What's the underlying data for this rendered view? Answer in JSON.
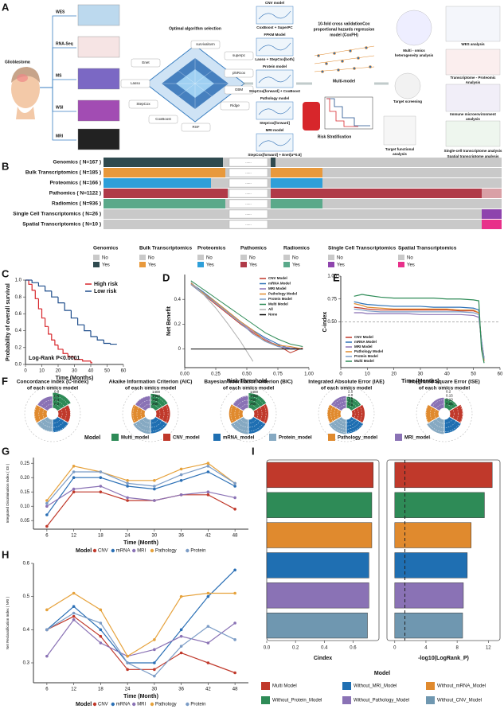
{
  "panel_a": {
    "label": "A",
    "input_title": "Glioblastoma",
    "modalities": [
      "WES",
      "RNA-Seq",
      "MS",
      "WSI",
      "MRI"
    ],
    "algo_title": "Optimal algorithm selection",
    "algorithms": [
      "survivalsvm",
      "superpc",
      "plsRcox",
      "GBM",
      "Ridge",
      "RSF",
      "CoxBoost",
      "StepCox",
      "Lasso",
      "Enet"
    ],
    "models": [
      {
        "name": "CNV model",
        "combo": "CoxBoost + SuperPC"
      },
      {
        "name": "FPKM Model",
        "combo": "Lasso + StepCox[both]"
      },
      {
        "name": "Protein model",
        "combo": "StepCox[forward] + CoxBoost"
      },
      {
        "name": "Pathology model",
        "combo": "StepCox[forward]"
      },
      {
        "name": "MRI model",
        "combo": "StepCox[forward] + Enet[α=0.8]"
      }
    ],
    "cv_title": [
      "10-fold cross validationCox",
      "proportional hazards regression",
      "model (CoxPH)"
    ],
    "multi_model": "Multi-model",
    "risk": "Risk Stratification",
    "analyses": [
      [
        "Multi - omics",
        "heterogeneity analysis"
      ],
      [
        "WES analysis"
      ],
      [
        "Transcriptome - Proteomic",
        "Analysis"
      ],
      [
        "Target screening"
      ],
      [
        "Immune microenvironment",
        "analysis"
      ],
      [
        "Target functional",
        "analysis"
      ],
      [
        "Single-cell transcriptome analysis"
      ],
      [
        "Spatial transcriptome analysis"
      ]
    ]
  },
  "panel_b": {
    "label": "B",
    "ellipsis": "......",
    "rows": [
      "Genomics ( N=167 )",
      "Bulk Transcriptomics ( N=185 )",
      "Proteomics ( N=166 )",
      "Pathomics ( N=1122 )",
      "Radiomics ( N=936 )",
      "Single Cell Transcriptomics ( N=26 )",
      "Spatial Transcriptomics ( N=10 )"
    ],
    "legend": [
      {
        "title": "Genomics",
        "items": [
          "No",
          "Yes"
        ],
        "colors": [
          "#c9c9c9",
          "#2f4a4f"
        ]
      },
      {
        "title": "Bulk Transcriptomics",
        "items": [
          "No",
          "Yes"
        ],
        "colors": [
          "#c9c9c9",
          "#e8993c"
        ]
      },
      {
        "title": "Proteomics",
        "items": [
          "No",
          "Yes"
        ],
        "colors": [
          "#c9c9c9",
          "#2e9fd9"
        ]
      },
      {
        "title": "Pathomics",
        "items": [
          "No",
          "Yes"
        ],
        "colors": [
          "#c9c9c9",
          "#b03a48"
        ]
      },
      {
        "title": "Radiomics",
        "items": [
          "No",
          "Yes"
        ],
        "colors": [
          "#c9c9c9",
          "#5aa98a"
        ]
      },
      {
        "title": "Single Cell Transcriptomics",
        "items": [
          "No",
          "Yes"
        ],
        "colors": [
          "#c9c9c9",
          "#8e44ad"
        ]
      },
      {
        "title": "Spatial Transcriptomics",
        "items": [
          "No",
          "Yes"
        ],
        "colors": [
          "#c9c9c9",
          "#e8308a"
        ]
      }
    ]
  },
  "panel_f": {
    "label": "F",
    "legend_title": "Model",
    "legend": [
      {
        "name": "Multi_model",
        "color": "#2e8b57"
      },
      {
        "name": "CNV_model",
        "color": "#c0392b"
      },
      {
        "name": "mRNA_model",
        "color": "#1f6fb2"
      },
      {
        "name": "Protein_model",
        "color": "#86a9c2"
      },
      {
        "name": "Pathology_model",
        "color": "#e08a2e"
      },
      {
        "name": "MRI_model",
        "color": "#8a72b5"
      }
    ]
  },
  "panel_i": {
    "legend_title": "Model"
  },
  "chart_data": [
    {
      "type": "line",
      "panel": "C",
      "step": true,
      "xlabel": "Time (Months)",
      "ylabel": "Probability of overall survival",
      "annotation": "Log-Rank P<0.0001",
      "legend": "top-right",
      "xlim": [
        0,
        60
      ],
      "xticks": [
        0,
        10,
        20,
        30,
        40,
        50,
        60
      ],
      "ylim": [
        0,
        1
      ],
      "yticks": [
        {
          "value": 0,
          "label": "0.0"
        },
        0.2,
        0.4,
        0.6,
        0.8,
        {
          "value": 1,
          "label": "1.0"
        }
      ],
      "series": [
        {
          "name": "High risk",
          "color": "#d7262b",
          "x": [
            0,
            2,
            4,
            6,
            8,
            10,
            12,
            14,
            16,
            18,
            20,
            23,
            26,
            30,
            35,
            40
          ],
          "values": [
            1,
            0.95,
            0.88,
            0.78,
            0.66,
            0.55,
            0.45,
            0.36,
            0.29,
            0.23,
            0.18,
            0.13,
            0.09,
            0.06,
            0.04,
            0.02
          ]
        },
        {
          "name": "Low risk",
          "color": "#1f4e8c",
          "x": [
            0,
            4,
            8,
            12,
            16,
            20,
            24,
            28,
            32,
            36,
            40,
            44,
            48,
            52,
            55
          ],
          "values": [
            1,
            0.97,
            0.93,
            0.87,
            0.8,
            0.73,
            0.64,
            0.55,
            0.47,
            0.4,
            0.33,
            0.29,
            0.25,
            0.24,
            0.24
          ]
        }
      ]
    },
    {
      "type": "line",
      "panel": "D",
      "xlabel": "Risk Threshold",
      "ylabel": "Net Benefit",
      "legend": "top-right",
      "xlim": [
        0,
        1
      ],
      "xticks": [
        {
          "value": 0,
          "label": "0.00"
        },
        {
          "value": 0.25,
          "label": "0.25"
        },
        {
          "value": 0.5,
          "label": "0.50"
        },
        {
          "value": 0.75,
          "label": "0.75"
        },
        {
          "value": 1,
          "label": "1.00"
        }
      ],
      "ylim": [
        -0.15,
        0.6
      ],
      "yticks": [
        0,
        0.2,
        0.4
      ],
      "x": [
        0.05,
        0.15,
        0.25,
        0.35,
        0.45,
        0.55,
        0.65,
        0.75,
        0.85,
        0.95
      ],
      "series": [
        {
          "name": "CNV Model",
          "color": "#c0392b",
          "values": [
            0.52,
            0.44,
            0.36,
            0.28,
            0.2,
            0.13,
            0.07,
            0.03,
            -0.03,
            0.01
          ]
        },
        {
          "name": "mRNA Model",
          "color": "#2a6fb5",
          "values": [
            0.53,
            0.46,
            0.38,
            0.3,
            0.22,
            0.15,
            0.09,
            0.04,
            0,
            0
          ]
        },
        {
          "name": "MRI Model",
          "color": "#8a72b5",
          "values": [
            0.52,
            0.45,
            0.37,
            0.29,
            0.21,
            0.14,
            0.08,
            0.02,
            0.01,
            0
          ]
        },
        {
          "name": "Pathology Model",
          "color": "#e08a2e",
          "values": [
            0.53,
            0.45,
            0.38,
            0.3,
            0.22,
            0.15,
            0.06,
            0.03,
            0.02,
            0
          ]
        },
        {
          "name": "Protein Model",
          "color": "#7b9cc6",
          "values": [
            0.52,
            0.44,
            0.37,
            0.29,
            0.21,
            0.12,
            0.06,
            0.02,
            0,
            0
          ]
        },
        {
          "name": "Multi Model",
          "color": "#2e8b57",
          "values": [
            0.55,
            0.48,
            0.41,
            0.34,
            0.27,
            0.2,
            0.13,
            0.08,
            0.04,
            0.02
          ]
        },
        {
          "name": "All",
          "color": "#b0b0b0",
          "values": [
            0.54,
            0.44,
            0.33,
            0.2,
            0.06,
            -0.1,
            null,
            null,
            null,
            null
          ]
        },
        {
          "name": "None",
          "color": "#000000",
          "values": [
            0,
            0,
            0,
            0,
            0,
            0,
            0,
            0,
            0,
            0
          ]
        }
      ]
    },
    {
      "type": "line",
      "panel": "E",
      "xlabel": "Time (Months)",
      "ylabel": "C-index",
      "legend": "bottom-left",
      "ref_line": 0.5,
      "xlim": [
        0,
        60
      ],
      "xticks": [
        0,
        10,
        20,
        30,
        40,
        50,
        60
      ],
      "ylim": [
        0,
        1
      ],
      "yticks": [
        {
          "value": 0.5,
          "label": "0.50"
        },
        0.75,
        {
          "value": 1,
          "label": "1.00"
        }
      ],
      "x": [
        5,
        8,
        10,
        15,
        20,
        25,
        30,
        35,
        40,
        45,
        50,
        52,
        53,
        54
      ],
      "series": [
        {
          "name": "CNV Model",
          "color": "#c0392b",
          "values": [
            0.66,
            0.65,
            0.64,
            0.63,
            0.63,
            0.63,
            0.63,
            0.63,
            0.63,
            0.62,
            0.62,
            0.6,
            0.3,
            0.1
          ]
        },
        {
          "name": "mRNA Model",
          "color": "#2a6fb5",
          "values": [
            0.72,
            0.7,
            0.69,
            0.68,
            0.67,
            0.67,
            0.67,
            0.66,
            0.66,
            0.66,
            0.65,
            0.63,
            0.25,
            0.08
          ]
        },
        {
          "name": "MRI Model",
          "color": "#8a72b5",
          "values": [
            0.6,
            0.6,
            0.59,
            0.59,
            0.59,
            0.59,
            0.58,
            0.58,
            0.58,
            0.58,
            0.57,
            0.55,
            0.3,
            0.1
          ]
        },
        {
          "name": "Pathology Model",
          "color": "#e08a2e",
          "values": [
            0.7,
            0.68,
            0.66,
            0.65,
            0.64,
            0.64,
            0.64,
            0.64,
            0.64,
            0.63,
            0.63,
            0.6,
            0.28,
            0.07
          ]
        },
        {
          "name": "Protein Model",
          "color": "#7b9cc6",
          "values": [
            0.64,
            0.63,
            0.62,
            0.61,
            0.61,
            0.61,
            0.61,
            0.61,
            0.61,
            0.61,
            0.6,
            0.58,
            0.3,
            0.1
          ]
        },
        {
          "name": "Multi Model",
          "color": "#2e8b57",
          "values": [
            0.78,
            0.8,
            0.79,
            0.77,
            0.76,
            0.76,
            0.76,
            0.76,
            0.75,
            0.75,
            0.74,
            0.73,
            0.2,
            0.05
          ]
        }
      ]
    },
    {
      "type": "rose",
      "title": [
        "Concordance index (C-index)",
        "of each omics model"
      ],
      "rlim": [
        0,
        0.9
      ],
      "rticks": [
        0.2,
        0.4,
        0.6,
        0.8
      ],
      "values": [
        0.78,
        0.62,
        0.65,
        0.63,
        0.64,
        0.6
      ]
    },
    {
      "type": "rose",
      "title": [
        "Akaike Information Criterion (AIC)",
        "of each omics model"
      ],
      "rlim": [
        0,
        1600
      ],
      "rticks": [
        350,
        700,
        1050,
        1400
      ],
      "values": [
        1300,
        1250,
        1250,
        1300,
        1200,
        1100
      ]
    },
    {
      "type": "rose",
      "title": [
        "Bayesian information criterion (BIC)",
        "of each omics model"
      ],
      "rlim": [
        0,
        1600
      ],
      "rticks": [
        350,
        700,
        1050,
        1400
      ],
      "values": [
        1350,
        1280,
        1280,
        1320,
        1230,
        1120
      ]
    },
    {
      "type": "rose",
      "title": [
        "Integrated Absolute Error (IAE)",
        "of each omics model"
      ],
      "rlim": [
        0,
        2.8
      ],
      "rticks": [
        0.5,
        {
          "value": 1,
          "label": "1.0"
        },
        1.5,
        {
          "value": 2,
          "label": "2.0"
        },
        2.5
      ],
      "values": [
        1.8,
        2.0,
        2.2,
        2.3,
        2.1,
        1.9
      ]
    },
    {
      "type": "rose",
      "title": [
        "Integrated Square Error (ISE)",
        "of each omics model"
      ],
      "rlim": [
        0,
        0.22
      ],
      "rticks": [
        0.05,
        {
          "value": 0.1,
          "label": "0.10"
        },
        0.15,
        {
          "value": 0.2,
          "label": "0.2"
        }
      ],
      "values": [
        0.12,
        0.16,
        0.17,
        0.18,
        0.16,
        0.13
      ]
    },
    {
      "type": "line",
      "panel": "G",
      "markers": true,
      "xlabel": "Time (Month)",
      "ylabel": "Integrated Discrimination Index ( IDI )",
      "legend": "bottom",
      "legend_title": "Model",
      "xlim": [
        3,
        51
      ],
      "xticks": [
        6,
        12,
        18,
        24,
        30,
        36,
        42,
        48
      ],
      "ylim": [
        0.02,
        0.27
      ],
      "yticks": [
        0.05,
        {
          "value": 0.1,
          "label": "0.10"
        },
        0.15,
        {
          "value": 0.2,
          "label": "0.20"
        },
        0.25
      ],
      "x": [
        6,
        12,
        18,
        24,
        30,
        36,
        42,
        48
      ],
      "series": [
        {
          "name": "CNV",
          "color": "#c0392b",
          "values": [
            0.03,
            0.15,
            0.15,
            0.12,
            0.12,
            0.14,
            0.14,
            0.09
          ]
        },
        {
          "name": "mRNA",
          "color": "#2a6fb5",
          "values": [
            0.07,
            0.2,
            0.2,
            0.17,
            0.16,
            0.19,
            0.22,
            0.17
          ]
        },
        {
          "name": "MRI",
          "color": "#8a72b5",
          "values": [
            0.1,
            0.16,
            0.17,
            0.13,
            0.12,
            0.14,
            0.15,
            0.13
          ]
        },
        {
          "name": "Pathology",
          "color": "#e6a23c",
          "values": [
            0.12,
            0.24,
            0.22,
            0.19,
            0.19,
            0.23,
            0.25,
            0.18
          ]
        },
        {
          "name": "Protein",
          "color": "#7b9cc6",
          "values": [
            0.11,
            0.22,
            0.22,
            0.18,
            0.17,
            0.21,
            0.24,
            0.18
          ]
        }
      ]
    },
    {
      "type": "line",
      "panel": "H",
      "markers": true,
      "xlabel": "Time (Month)",
      "ylabel": "Net Reclassification Index ( NRI )",
      "legend": "bottom",
      "legend_title": "Model",
      "xlim": [
        3,
        51
      ],
      "xticks": [
        6,
        12,
        18,
        24,
        30,
        36,
        42,
        48
      ],
      "ylim": [
        0.24,
        0.6
      ],
      "yticks": [
        0.3,
        0.4,
        0.5,
        0.6
      ],
      "x": [
        6,
        12,
        18,
        24,
        30,
        36,
        42,
        48
      ],
      "series": [
        {
          "name": "CNV",
          "color": "#c0392b",
          "values": [
            0.4,
            0.44,
            0.38,
            0.28,
            0.28,
            0.33,
            0.3,
            0.27
          ]
        },
        {
          "name": "mRNA",
          "color": "#2a6fb5",
          "values": [
            0.4,
            0.47,
            0.4,
            0.3,
            0.3,
            0.4,
            0.5,
            0.58
          ]
        },
        {
          "name": "MRI",
          "color": "#8a72b5",
          "values": [
            0.32,
            0.43,
            0.36,
            0.32,
            0.34,
            0.38,
            0.36,
            0.42
          ]
        },
        {
          "name": "Pathology",
          "color": "#e6a23c",
          "values": [
            0.46,
            0.51,
            0.46,
            0.32,
            0.37,
            0.5,
            0.51,
            0.51
          ]
        },
        {
          "name": "Protein",
          "color": "#7b9cc6",
          "values": [
            0.4,
            0.45,
            0.42,
            0.3,
            0.26,
            0.35,
            0.41,
            0.37
          ]
        }
      ]
    },
    {
      "type": "hbar",
      "panel": "I",
      "xlabel": "Cindex",
      "xlim": [
        0,
        0.78
      ],
      "xticks": [
        {
          "value": 0,
          "label": "0.0"
        },
        0.2,
        0.4,
        0.6
      ],
      "categories": [
        "Multi Model",
        "Without_Protein_Model",
        "Without_mRNA_Model",
        "Without_MRI_Model",
        "Without_Pathology_Model",
        "Without_CNV_Model"
      ],
      "colors": [
        "#c0392b",
        "#2e8b57",
        "#e08a2e",
        "#1f6fb2",
        "#8a72b5",
        "#6f97b0"
      ],
      "values": [
        0.74,
        0.73,
        0.73,
        0.71,
        0.71,
        0.7
      ]
    },
    {
      "type": "hbar",
      "xlabel": "-log10(LogRank_P)",
      "xlim": [
        -1,
        13.5
      ],
      "xticks": [
        0,
        4,
        8,
        12
      ],
      "ref_line": 1.3,
      "values": [
        12.5,
        11.5,
        9.8,
        9.3,
        8.8,
        8.7
      ]
    }
  ]
}
